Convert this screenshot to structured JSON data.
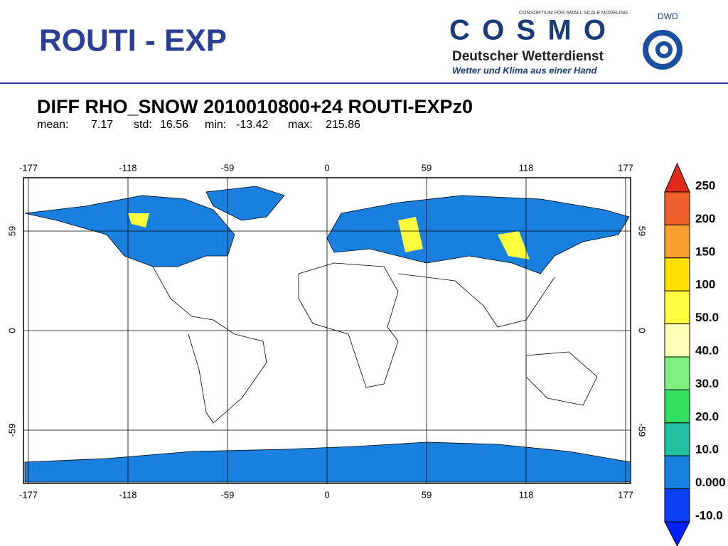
{
  "header": {
    "title": "ROUTI - EXP",
    "logo": {
      "consortium": "CONSORTIUM FOR SMALL SCALE MODELING",
      "cosmo": "COSMO",
      "dwd_name": "Deutscher Wetterdienst",
      "slogan": "Wetter und Klima aus einer Hand",
      "dwd": "DWD"
    }
  },
  "map": {
    "title": "DIFF RHO_SNOW 2010010800+24 ROUTI-EXPz0",
    "stats": [
      {
        "label": "mean:",
        "value": "7.17"
      },
      {
        "label": "std:",
        "value": "16.56"
      },
      {
        "label": "min:",
        "value": "-13.42"
      },
      {
        "label": "max:",
        "value": "215.86"
      }
    ],
    "xticks": [
      -177,
      -118,
      -59,
      0,
      59,
      118,
      177
    ],
    "yticks": [
      59,
      0,
      -59
    ]
  },
  "colorbar": {
    "labels": [
      "250",
      "200",
      "150",
      "100",
      "50.0",
      "40.0",
      "30.0",
      "20.0",
      "10.0",
      "0.000",
      "-10.0"
    ],
    "colors": [
      "#e02a1a",
      "#f0602a",
      "#f8a030",
      "#ffe000",
      "#ffff40",
      "#ffffb8",
      "#80f080",
      "#30e060",
      "#20c0a0",
      "#1a80e0",
      "#0a40f0",
      "#0020ff"
    ]
  }
}
